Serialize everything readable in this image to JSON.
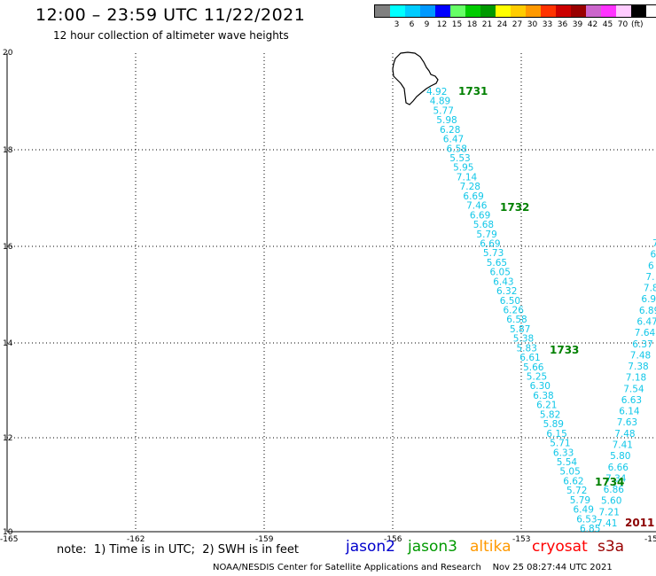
{
  "header": {
    "title": "12:00 – 23:59 UTC 11/22/2021",
    "subtitle": "12 hour collection of altimeter wave heights"
  },
  "legend": {
    "items": [
      {
        "label": "",
        "color": "#808080"
      },
      {
        "label": "3",
        "color": "#00ffff"
      },
      {
        "label": "6",
        "color": "#00ccff"
      },
      {
        "label": "9",
        "color": "#0099ff"
      },
      {
        "label": "12",
        "color": "#0000ff"
      },
      {
        "label": "15",
        "color": "#66ff66"
      },
      {
        "label": "18",
        "color": "#00cc00"
      },
      {
        "label": "21",
        "color": "#009900"
      },
      {
        "label": "24",
        "color": "#ffff00"
      },
      {
        "label": "27",
        "color": "#ffcc00"
      },
      {
        "label": "30",
        "color": "#ff9900"
      },
      {
        "label": "33",
        "color": "#ff3300"
      },
      {
        "label": "36",
        "color": "#cc0000"
      },
      {
        "label": "39",
        "color": "#990000"
      },
      {
        "label": "42",
        "color": "#cc66cc"
      },
      {
        "label": "45",
        "color": "#ff33ff"
      },
      {
        "label": "70",
        "color": "#ffccff"
      },
      {
        "label": "",
        "color": "#000000"
      }
    ],
    "unit": "(ft)"
  },
  "map": {
    "y_axis_labels": [
      "20",
      "18",
      "16",
      "14",
      "12",
      "10"
    ],
    "x_axis_labels": [
      "-165",
      "-162",
      "-159",
      "-156",
      "-153",
      "-15"
    ],
    "track_time_labels": [
      {
        "text": "1731",
        "color": "#008000"
      },
      {
        "text": "1732",
        "color": "#008000"
      },
      {
        "text": "1733",
        "color": "#008000"
      },
      {
        "text": "1734",
        "color": "#008000"
      },
      {
        "text": "2011",
        "color": "#8b0000"
      }
    ],
    "track1_color": "#11c7e8",
    "track1_values": [
      "4.92",
      "4.89",
      "5.77",
      "5.98",
      "6.28",
      "6.47",
      "6.58",
      "5.53",
      "5.95",
      "7.14",
      "7.28",
      "6.69",
      "7.46",
      "6.69",
      "5.68",
      "5.79",
      "6.69",
      "5.73",
      "5.65",
      "6.05",
      "6.43",
      "6.32",
      "6.50",
      "6.26",
      "6.58",
      "5.87",
      "5.38",
      "5.83",
      "6.61",
      "5.66",
      "5.25",
      "6.30",
      "6.38",
      "6.21",
      "5.82",
      "5.89",
      "6.15",
      "5.71",
      "6.33",
      "5.54",
      "5.05",
      "6.62",
      "5.72",
      "5.79",
      "6.49",
      "6.53",
      "6.85"
    ],
    "track2_values": [
      "7",
      "6",
      "6",
      "7.",
      "7.8",
      "6.9",
      "6.89",
      "6.47",
      "7.64",
      "6.37",
      "7.48",
      "7.38",
      "7.18",
      "7.54",
      "6.63",
      "6.14",
      "7.63",
      "7.48",
      "7.41",
      "5.80",
      "6.66",
      "7.34",
      "6.86",
      "5.60",
      "7.21",
      "7.41"
    ]
  },
  "footer": {
    "note": "note:  1) Time is in UTC;  2) SWH is in feet",
    "missions": [
      {
        "name": "jason2",
        "color": "#0000cc"
      },
      {
        "name": "jason3",
        "color": "#009900"
      },
      {
        "name": "altika",
        "color": "#ff9900"
      },
      {
        "name": "cryosat",
        "color": "#ff0000"
      },
      {
        "name": "s3a",
        "color": "#990000"
      }
    ],
    "credit": "NOAA/NESDIS Center for Satellite Applications and Research    Nov 25 08:27:44 UTC 2021"
  }
}
